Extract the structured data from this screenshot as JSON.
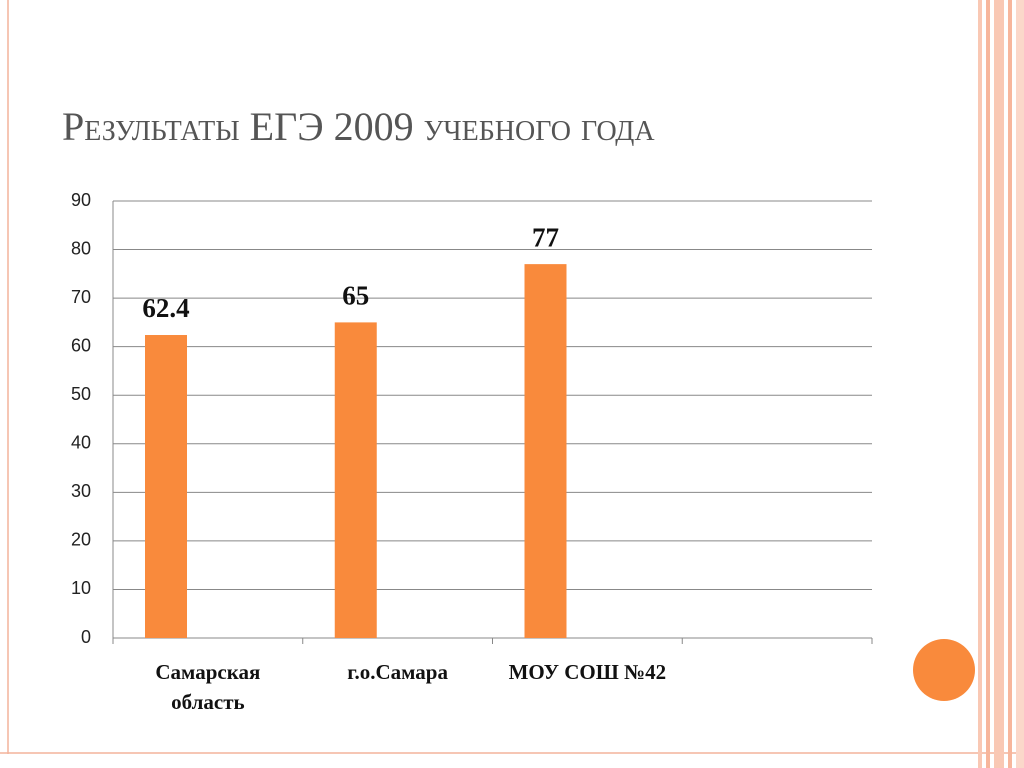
{
  "chart_data": {
    "type": "bar",
    "title": "Результаты ЕГЭ 2009 учебного года",
    "categories": [
      "Самарская область",
      "г.о.Самара",
      "МОУ СОШ №42",
      null
    ],
    "values": [
      62.4,
      65,
      77,
      null
    ],
    "color": "#f98a3c",
    "ylim": [
      0,
      90
    ],
    "yticks": [
      0,
      10,
      20,
      30,
      40,
      50,
      60,
      70,
      80,
      90
    ],
    "grid": true
  }
}
